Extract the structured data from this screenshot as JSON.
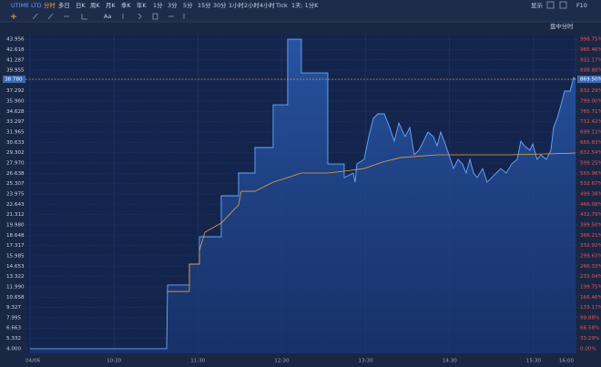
{
  "toolbar": {
    "symbol": "UTIME LTD",
    "periods": [
      "分时",
      "多日",
      "日K",
      "周K",
      "月K",
      "季K",
      "年K",
      "1分",
      "3分",
      "5分",
      "15分",
      "30分",
      "1小时",
      "2小时",
      "4小时",
      "Tick",
      "1天: 1分K"
    ],
    "display": "显示",
    "f10": "F10",
    "font": "Aa",
    "mode": "盘中分时"
  },
  "chart_data": {
    "type": "line",
    "xlim": [
      0,
      390
    ],
    "xticks": [
      {
        "value": 0,
        "label": "04/06"
      },
      {
        "value": 60,
        "label": "10:30"
      },
      {
        "value": 120,
        "label": "11:30"
      },
      {
        "value": 180,
        "label": "12:30"
      },
      {
        "value": 240,
        "label": "13:30"
      },
      {
        "value": 300,
        "label": "14:30"
      },
      {
        "value": 360,
        "label": "15:30"
      },
      {
        "value": 390,
        "label": "16:00"
      }
    ],
    "ylim": [
      3.4,
      44.55
    ],
    "yticks": [
      {
        "value": 4.0,
        "label": "4.000"
      },
      {
        "value": 5.332,
        "label": "5.332"
      },
      {
        "value": 6.663,
        "label": "6.663"
      },
      {
        "value": 7.995,
        "label": "7.995"
      },
      {
        "value": 9.327,
        "label": "9.327"
      },
      {
        "value": 10.658,
        "label": "10.658"
      },
      {
        "value": 11.99,
        "label": "11.990"
      },
      {
        "value": 13.322,
        "label": "13.322"
      },
      {
        "value": 14.653,
        "label": "14.653"
      },
      {
        "value": 15.985,
        "label": "15.985"
      },
      {
        "value": 17.317,
        "label": "17.317"
      },
      {
        "value": 18.648,
        "label": "18.648"
      },
      {
        "value": 19.98,
        "label": "19.980"
      },
      {
        "value": 21.312,
        "label": "21.312"
      },
      {
        "value": 22.643,
        "label": "22.643"
      },
      {
        "value": 23.975,
        "label": "23.975"
      },
      {
        "value": 25.307,
        "label": "25.307"
      },
      {
        "value": 26.638,
        "label": "26.638"
      },
      {
        "value": 27.97,
        "label": "27.970"
      },
      {
        "value": 29.302,
        "label": "29.302"
      },
      {
        "value": 30.633,
        "label": "30.633"
      },
      {
        "value": 31.965,
        "label": "31.965"
      },
      {
        "value": 33.297,
        "label": "33.297"
      },
      {
        "value": 34.628,
        "label": "34.628"
      },
      {
        "value": 35.96,
        "label": "35.960"
      },
      {
        "value": 37.292,
        "label": "37.292"
      },
      {
        "value": 39.955,
        "label": "39.955"
      },
      {
        "value": 41.287,
        "label": "41.287"
      },
      {
        "value": 42.618,
        "label": "42.618"
      },
      {
        "value": 43.956,
        "label": "43.956"
      }
    ],
    "y2lim": [
      -15,
      1013.75
    ],
    "y2ticks": [
      {
        "value": 0,
        "label": "0.00%"
      },
      {
        "value": 33.29,
        "label": "33.29%"
      },
      {
        "value": 66.58,
        "label": "66.58%"
      },
      {
        "value": 99.88,
        "label": "99.88%"
      },
      {
        "value": 133.17,
        "label": "133.17%"
      },
      {
        "value": 166.46,
        "label": "166.46%"
      },
      {
        "value": 199.75,
        "label": "199.75%"
      },
      {
        "value": 233.04,
        "label": "233.04%"
      },
      {
        "value": 266.33,
        "label": "266.33%"
      },
      {
        "value": 299.63,
        "label": "299.63%"
      },
      {
        "value": 332.92,
        "label": "332.92%"
      },
      {
        "value": 366.21,
        "label": "366.21%"
      },
      {
        "value": 399.5,
        "label": "399.50%"
      },
      {
        "value": 432.79,
        "label": "432.79%"
      },
      {
        "value": 466.08,
        "label": "466.08%"
      },
      {
        "value": 499.38,
        "label": "499.38%"
      },
      {
        "value": 532.67,
        "label": "532.67%"
      },
      {
        "value": 565.96,
        "label": "565.96%"
      },
      {
        "value": 599.25,
        "label": "599.25%"
      },
      {
        "value": 632.54,
        "label": "632.54%"
      },
      {
        "value": 665.83,
        "label": "665.83%"
      },
      {
        "value": 699.13,
        "label": "699.13%"
      },
      {
        "value": 732.42,
        "label": "732.42%"
      },
      {
        "value": 765.71,
        "label": "765.71%"
      },
      {
        "value": 799.0,
        "label": "799.00%"
      },
      {
        "value": 832.29,
        "label": "832.29%"
      },
      {
        "value": 898.88,
        "label": "898.88%"
      },
      {
        "value": 932.17,
        "label": "932.17%"
      },
      {
        "value": 965.46,
        "label": "965.46%"
      },
      {
        "value": 998.75,
        "label": "998.75%"
      }
    ],
    "last_price": {
      "value": 38.78,
      "label": "38.780",
      "pct": 869.5,
      "pct_label": "869.50%"
    },
    "grid": true,
    "series": [
      {
        "color": "#6aa8ff",
        "x": [
          0,
          97.7,
          98.3,
          113.9,
          113.9,
          121.1,
          121.1,
          136.7,
          136.7,
          149.1,
          149.1,
          160.8,
          160.8,
          173.8,
          173.8,
          184.2,
          184.2,
          194.0,
          194.0,
          212.9,
          212.9,
          224.6,
          224.6,
          231.1,
          232.4,
          233.7,
          238.9,
          242.2,
          245.4,
          248.7,
          253.3,
          257.2,
          260.4,
          263.7,
          268.2,
          271.5,
          274.7,
          278.0,
          281.3,
          284.5,
          288.4,
          291.0,
          293.6,
          296.2,
          299.5,
          302.7,
          306.0,
          309.2,
          311.8,
          314.5,
          317.1,
          319.7,
          323.6,
          326.8,
          330.1,
          333.3,
          336.6,
          340.5,
          344.4,
          348.3,
          350.9,
          353.5,
          357.4,
          359.4,
          362.6,
          365.2,
          369.1,
          372.4,
          374.3,
          376.9,
          379.6,
          382.2,
          386.1,
          388.7,
          390
        ],
        "values": [
          4.0,
          4.0,
          12.22,
          12.22,
          14.92,
          14.92,
          18.45,
          18.45,
          23.74,
          23.74,
          26.68,
          26.68,
          29.97,
          29.97,
          35.49,
          35.49,
          43.96,
          43.96,
          39.61,
          39.61,
          27.85,
          27.85,
          26.09,
          26.68,
          25.5,
          27.85,
          28.44,
          31.38,
          33.73,
          34.32,
          34.32,
          32.55,
          30.79,
          33.14,
          31.38,
          32.55,
          29.03,
          29.62,
          30.79,
          31.97,
          31.38,
          30.2,
          31.97,
          30.79,
          29.03,
          27.26,
          28.44,
          27.85,
          26.68,
          28.44,
          26.68,
          26.09,
          27.26,
          25.5,
          26.09,
          26.68,
          27.26,
          26.68,
          27.85,
          28.44,
          30.79,
          30.2,
          29.62,
          30.44,
          28.44,
          29.03,
          28.44,
          29.62,
          32.55,
          33.73,
          35.49,
          37.26,
          37.26,
          39.02,
          38.78
        ]
      },
      {
        "color": "#e8a040",
        "x": [
          98.3,
          113.9,
          113.9,
          121.1,
          121.1,
          125.0,
          136.7,
          149.1,
          151.0,
          160.8,
          173.8,
          184.2,
          194.0,
          212.9,
          224.6,
          238.9,
          251.9,
          264.9,
          291.0,
          317.1,
          343.1,
          369.1,
          390
        ],
        "values": [
          11.39,
          11.39,
          14.92,
          14.92,
          16.68,
          19.04,
          20.21,
          22.56,
          24.32,
          24.32,
          25.5,
          26.09,
          26.68,
          26.68,
          26.91,
          27.26,
          28.09,
          28.67,
          29.03,
          29.03,
          29.03,
          29.15,
          29.26
        ]
      }
    ]
  }
}
